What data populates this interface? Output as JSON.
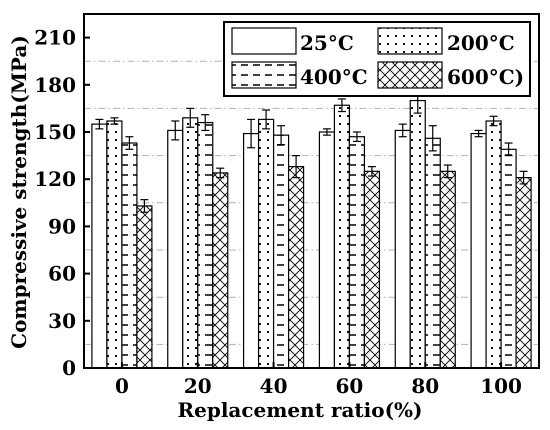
{
  "chart_data": {
    "type": "bar",
    "title": "",
    "xlabel": "Replacement ratio(%)",
    "ylabel": "Compressive strength(MPa)",
    "ylim": [
      0,
      225
    ],
    "yticks": [
      "0",
      "30",
      "60",
      "90",
      "120",
      "150",
      "180",
      "210"
    ],
    "categories": [
      "0",
      "20",
      "40",
      "60",
      "80",
      "100"
    ],
    "grid": "horizontal dash-dot",
    "legend_position": "top-right",
    "series": [
      {
        "name": "25°C",
        "pattern": "blank",
        "values": [
          155,
          151,
          149,
          150,
          151,
          149
        ],
        "errors": [
          3,
          6,
          9,
          2,
          4,
          2
        ]
      },
      {
        "name": "200°C",
        "pattern": "dots",
        "values": [
          157,
          159,
          158,
          167,
          170,
          157
        ],
        "errors": [
          2,
          6,
          6,
          4,
          8,
          3
        ]
      },
      {
        "name": "400°C",
        "pattern": "dashes",
        "values": [
          143,
          156,
          148,
          147,
          146,
          139
        ],
        "errors": [
          4,
          5,
          6,
          3,
          8,
          4
        ]
      },
      {
        "name": "600°C)",
        "pattern": "cross-hatch",
        "values": [
          103,
          124,
          128,
          125,
          125,
          121
        ],
        "errors": [
          4,
          3,
          7,
          3,
          4,
          4
        ]
      }
    ],
    "colors": {
      "bar_fill": "#ffffff",
      "bar_stroke": "#000000",
      "grid": "#b3b3b3"
    }
  }
}
